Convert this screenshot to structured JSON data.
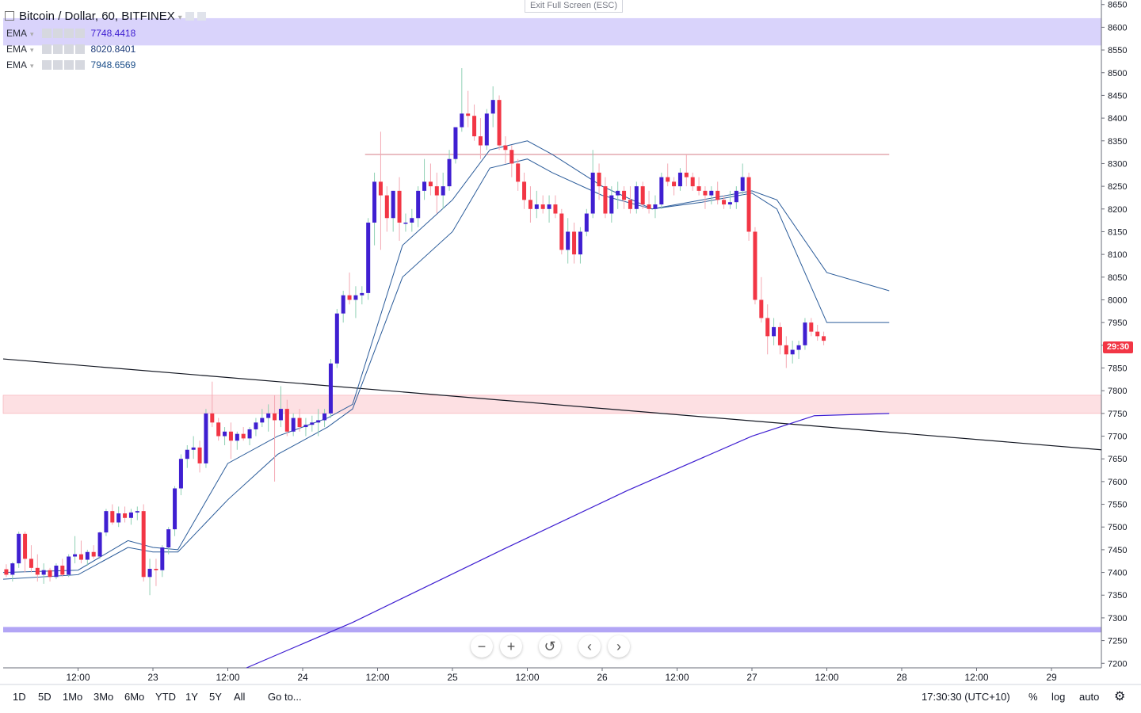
{
  "header": {
    "symbol": "Bitcoin / Dollar, 60, BITFINEX",
    "exit_fullscreen": "Exit Full Screen (ESC)"
  },
  "indicators": [
    {
      "name": "EMA",
      "value": "7748.4418",
      "color": "#3f1fd1"
    },
    {
      "name": "EMA",
      "value": "8020.8401",
      "color": "#1c3a7a"
    },
    {
      "name": "EMA",
      "value": "7948.6569",
      "color": "#1c4f8a"
    }
  ],
  "price_label": "29:30",
  "toolbar": {
    "ranges": [
      "1D",
      "5D",
      "1Mo",
      "3Mo",
      "6Mo",
      "YTD",
      "1Y",
      "5Y",
      "All"
    ],
    "goto": "Go to...",
    "clock": "17:30:30 (UTC+10)",
    "percent": "%",
    "log": "log",
    "auto": "auto"
  },
  "nav_icons": [
    "zoom-out-icon",
    "zoom-in-icon",
    "reset-icon",
    "scroll-left-icon",
    "scroll-right-icon"
  ],
  "colors": {
    "up": "#3f1fd1",
    "down": "#f23645",
    "ema_fast": "#2b5c9a",
    "ema_slow": "#3f1fd1",
    "zone_top": "#d9d3fb",
    "zone_mid": "#fde0e3",
    "zone_bottom": "#b2a5f5"
  },
  "chart_data": {
    "type": "candlestick",
    "y_ticks": [
      7200,
      7250,
      7300,
      7350,
      7400,
      7450,
      7500,
      7550,
      7600,
      7650,
      7700,
      7750,
      7800,
      7850,
      7900,
      7950,
      8000,
      8050,
      8100,
      8150,
      8200,
      8250,
      8300,
      8350,
      8400,
      8450,
      8500,
      8550,
      8600,
      8650
    ],
    "ylim": [
      7190,
      8660
    ],
    "x_ticks": [
      "12:00",
      "23",
      "12:00",
      "24",
      "12:00",
      "25",
      "12:00",
      "26",
      "12:00",
      "27",
      "12:00",
      "28",
      "12:00",
      "29"
    ],
    "x_tick_hours": [
      12,
      24,
      36,
      48,
      60,
      72,
      84,
      96,
      108,
      120,
      132,
      144,
      156,
      168
    ],
    "x_range_hours": [
      0,
      176
    ],
    "candles": [
      [
        7407,
        7418,
        7390,
        7395
      ],
      [
        7395,
        7423,
        7380,
        7420
      ],
      [
        7420,
        7490,
        7410,
        7485
      ],
      [
        7485,
        7490,
        7400,
        7430
      ],
      [
        7430,
        7460,
        7400,
        7410
      ],
      [
        7410,
        7440,
        7380,
        7395
      ],
      [
        7395,
        7420,
        7375,
        7405
      ],
      [
        7405,
        7410,
        7380,
        7390
      ],
      [
        7390,
        7420,
        7385,
        7415
      ],
      [
        7415,
        7430,
        7390,
        7395
      ],
      [
        7395,
        7440,
        7390,
        7435
      ],
      [
        7435,
        7480,
        7420,
        7440
      ],
      [
        7440,
        7470,
        7420,
        7428
      ],
      [
        7428,
        7450,
        7415,
        7445
      ],
      [
        7445,
        7460,
        7430,
        7435
      ],
      [
        7435,
        7490,
        7430,
        7488
      ],
      [
        7488,
        7540,
        7480,
        7535
      ],
      [
        7535,
        7550,
        7505,
        7510
      ],
      [
        7510,
        7545,
        7500,
        7530
      ],
      [
        7530,
        7545,
        7510,
        7520
      ],
      [
        7520,
        7540,
        7505,
        7532
      ],
      [
        7532,
        7545,
        7515,
        7535
      ],
      [
        7535,
        7550,
        7380,
        7390
      ],
      [
        7390,
        7430,
        7350,
        7408
      ],
      [
        7408,
        7430,
        7370,
        7405
      ],
      [
        7405,
        7460,
        7390,
        7455
      ],
      [
        7455,
        7500,
        7440,
        7495
      ],
      [
        7495,
        7590,
        7480,
        7585
      ],
      [
        7585,
        7660,
        7570,
        7650
      ],
      [
        7650,
        7680,
        7630,
        7670
      ],
      [
        7670,
        7700,
        7650,
        7675
      ],
      [
        7675,
        7690,
        7620,
        7640
      ],
      [
        7640,
        7760,
        7630,
        7750
      ],
      [
        7750,
        7820,
        7720,
        7730
      ],
      [
        7730,
        7740,
        7690,
        7700
      ],
      [
        7700,
        7720,
        7680,
        7710
      ],
      [
        7710,
        7730,
        7650,
        7690
      ],
      [
        7690,
        7710,
        7670,
        7705
      ],
      [
        7705,
        7720,
        7690,
        7695
      ],
      [
        7695,
        7720,
        7680,
        7715
      ],
      [
        7715,
        7740,
        7700,
        7730
      ],
      [
        7730,
        7760,
        7720,
        7740
      ],
      [
        7740,
        7770,
        7710,
        7750
      ],
      [
        7750,
        7790,
        7600,
        7735
      ],
      [
        7735,
        7810,
        7720,
        7760
      ],
      [
        7760,
        7780,
        7700,
        7710
      ],
      [
        7710,
        7750,
        7700,
        7740
      ],
      [
        7740,
        7760,
        7710,
        7720
      ],
      [
        7720,
        7740,
        7700,
        7725
      ],
      [
        7725,
        7745,
        7710,
        7730
      ],
      [
        7730,
        7760,
        7700,
        7735
      ],
      [
        7735,
        7760,
        7720,
        7750
      ],
      [
        7750,
        7870,
        7740,
        7860
      ],
      [
        7860,
        7980,
        7850,
        7970
      ],
      [
        7970,
        8020,
        7950,
        8010
      ],
      [
        8010,
        8060,
        7990,
        8000
      ],
      [
        8000,
        8030,
        7960,
        8010
      ],
      [
        8010,
        8030,
        7990,
        8015
      ],
      [
        8015,
        8180,
        8000,
        8170
      ],
      [
        8170,
        8280,
        8120,
        8260
      ],
      [
        8260,
        8370,
        8110,
        8230
      ],
      [
        8230,
        8250,
        8150,
        8180
      ],
      [
        8180,
        8240,
        8150,
        8240
      ],
      [
        8240,
        8270,
        8130,
        8170
      ],
      [
        8170,
        8190,
        8150,
        8170
      ],
      [
        8170,
        8200,
        8150,
        8180
      ],
      [
        8180,
        8250,
        8160,
        8240
      ],
      [
        8240,
        8310,
        8220,
        8260
      ],
      [
        8260,
        8300,
        8230,
        8250
      ],
      [
        8250,
        8280,
        8190,
        8230
      ],
      [
        8230,
        8280,
        8200,
        8250
      ],
      [
        8250,
        8330,
        8240,
        8310
      ],
      [
        8310,
        8380,
        8300,
        8380
      ],
      [
        8380,
        8510,
        8370,
        8410
      ],
      [
        8410,
        8460,
        8380,
        8405
      ],
      [
        8405,
        8430,
        8350,
        8360
      ],
      [
        8360,
        8400,
        8310,
        8340
      ],
      [
        8340,
        8420,
        8330,
        8410
      ],
      [
        8410,
        8470,
        8380,
        8440
      ],
      [
        8440,
        8450,
        8330,
        8340
      ],
      [
        8340,
        8360,
        8300,
        8330
      ],
      [
        8330,
        8340,
        8270,
        8300
      ],
      [
        8300,
        8310,
        8240,
        8260
      ],
      [
        8260,
        8280,
        8200,
        8220
      ],
      [
        8220,
        8250,
        8170,
        8200
      ],
      [
        8200,
        8240,
        8180,
        8210
      ],
      [
        8210,
        8230,
        8190,
        8200
      ],
      [
        8200,
        8230,
        8170,
        8210
      ],
      [
        8210,
        8230,
        8180,
        8190
      ],
      [
        8190,
        8200,
        8100,
        8110
      ],
      [
        8110,
        8180,
        8080,
        8150
      ],
      [
        8150,
        8170,
        8080,
        8100
      ],
      [
        8100,
        8160,
        8080,
        8150
      ],
      [
        8150,
        8200,
        8140,
        8190
      ],
      [
        8190,
        8330,
        8180,
        8280
      ],
      [
        8280,
        8300,
        8220,
        8250
      ],
      [
        8250,
        8270,
        8180,
        8190
      ],
      [
        8190,
        8250,
        8170,
        8230
      ],
      [
        8230,
        8260,
        8200,
        8240
      ],
      [
        8240,
        8250,
        8200,
        8220
      ],
      [
        8220,
        8250,
        8190,
        8200
      ],
      [
        8200,
        8260,
        8190,
        8250
      ],
      [
        8250,
        8260,
        8200,
        8210
      ],
      [
        8210,
        8240,
        8190,
        8200
      ],
      [
        8200,
        8230,
        8180,
        8210
      ],
      [
        8210,
        8280,
        8200,
        8270
      ],
      [
        8270,
        8300,
        8250,
        8260
      ],
      [
        8260,
        8270,
        8230,
        8250
      ],
      [
        8250,
        8290,
        8240,
        8280
      ],
      [
        8280,
        8320,
        8250,
        8270
      ],
      [
        8270,
        8280,
        8240,
        8250
      ],
      [
        8250,
        8270,
        8230,
        8240
      ],
      [
        8240,
        8250,
        8200,
        8230
      ],
      [
        8230,
        8250,
        8210,
        8240
      ],
      [
        8240,
        8260,
        8210,
        8220
      ],
      [
        8220,
        8230,
        8200,
        8210
      ],
      [
        8210,
        8240,
        8200,
        8215
      ],
      [
        8215,
        8250,
        8200,
        8240
      ],
      [
        8240,
        8300,
        8230,
        8270
      ],
      [
        8270,
        8280,
        8130,
        8150
      ],
      [
        8150,
        8160,
        7990,
        8000
      ],
      [
        8000,
        8050,
        7950,
        7960
      ],
      [
        7960,
        7990,
        7880,
        7920
      ],
      [
        7920,
        7960,
        7900,
        7940
      ],
      [
        7940,
        7950,
        7880,
        7900
      ],
      [
        7900,
        7920,
        7850,
        7880
      ],
      [
        7880,
        7910,
        7860,
        7890
      ],
      [
        7890,
        7910,
        7870,
        7900
      ],
      [
        7900,
        7960,
        7890,
        7950
      ],
      [
        7950,
        7960,
        7920,
        7930
      ],
      [
        7930,
        7945,
        7910,
        7920
      ],
      [
        7920,
        7930,
        7900,
        7910
      ]
    ],
    "ema_fast": [
      [
        0,
        7400
      ],
      [
        12,
        7405
      ],
      [
        20,
        7470
      ],
      [
        24,
        7455
      ],
      [
        28,
        7450
      ],
      [
        36,
        7640
      ],
      [
        44,
        7700
      ],
      [
        52,
        7740
      ],
      [
        56,
        7770
      ],
      [
        64,
        8120
      ],
      [
        72,
        8220
      ],
      [
        78,
        8330
      ],
      [
        84,
        8350
      ],
      [
        88,
        8320
      ],
      [
        96,
        8250
      ],
      [
        104,
        8200
      ],
      [
        112,
        8215
      ],
      [
        120,
        8235
      ],
      [
        124,
        8200
      ],
      [
        132,
        7950
      ],
      [
        142,
        7950
      ]
    ],
    "ema_mid": [
      [
        0,
        7385
      ],
      [
        12,
        7395
      ],
      [
        20,
        7455
      ],
      [
        24,
        7445
      ],
      [
        28,
        7445
      ],
      [
        36,
        7560
      ],
      [
        44,
        7660
      ],
      [
        52,
        7720
      ],
      [
        56,
        7760
      ],
      [
        64,
        8050
      ],
      [
        72,
        8150
      ],
      [
        78,
        8290
      ],
      [
        84,
        8310
      ],
      [
        88,
        8280
      ],
      [
        96,
        8230
      ],
      [
        104,
        8200
      ],
      [
        112,
        8220
      ],
      [
        120,
        8240
      ],
      [
        124,
        8220
      ],
      [
        132,
        8060
      ],
      [
        142,
        8020
      ]
    ],
    "ema_slow": [
      [
        39,
        7190
      ],
      [
        56,
        7290
      ],
      [
        80,
        7450
      ],
      [
        100,
        7580
      ],
      [
        120,
        7700
      ],
      [
        130,
        7745
      ],
      [
        142,
        7750
      ]
    ],
    "trend_line": [
      [
        0,
        7870
      ],
      [
        176,
        7670
      ]
    ],
    "resistance_line": [
      [
        58,
        8320
      ],
      [
        142,
        8320
      ]
    ],
    "zones": [
      {
        "from": 8560,
        "to": 8620,
        "color": "#d9d3fb"
      },
      {
        "from": 7750,
        "to": 7790,
        "color": "#fde0e3"
      },
      {
        "from": 7268,
        "to": 7280,
        "color": "#b2a5f5"
      }
    ]
  }
}
